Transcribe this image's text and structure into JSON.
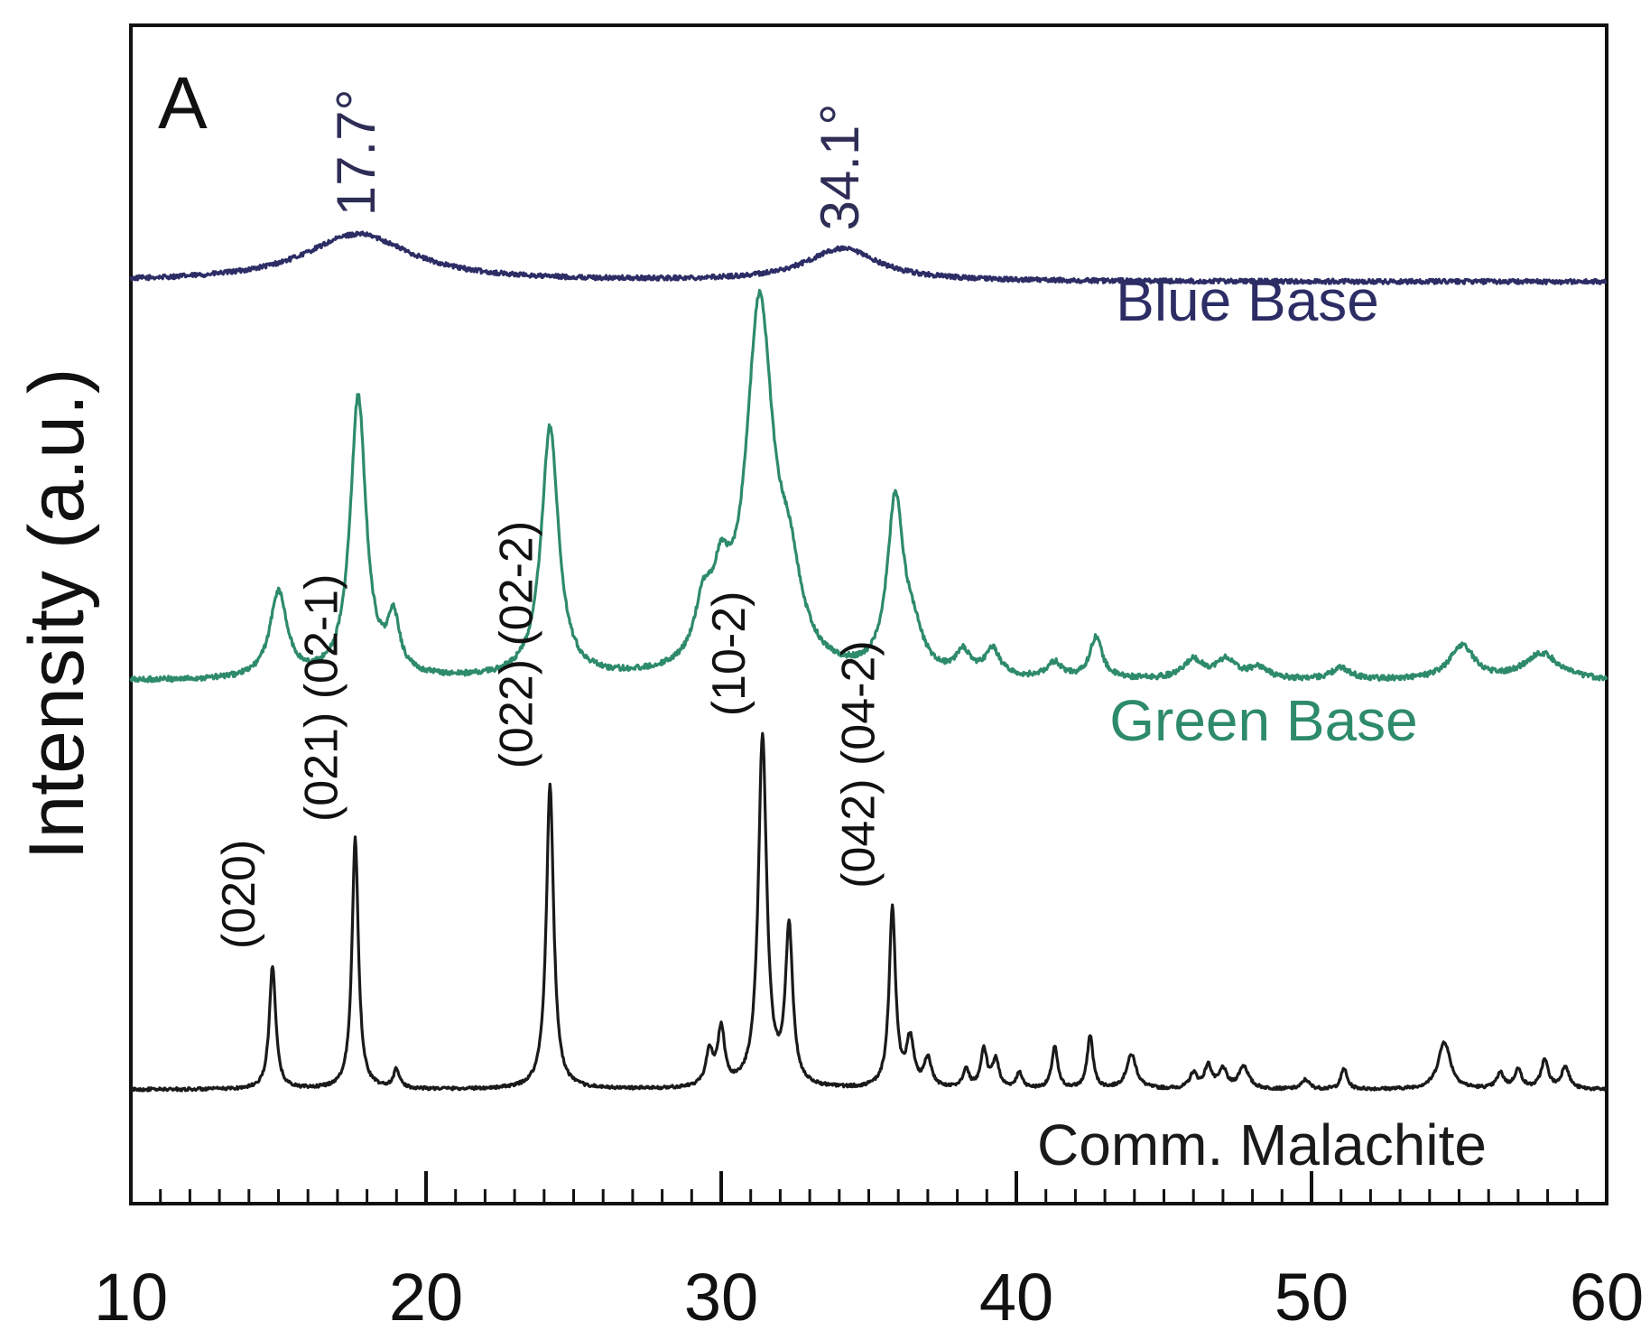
{
  "chart_data": {
    "type": "line",
    "panel_label": "A",
    "ylabel": "Intensity (a.u.)",
    "xlim": [
      10,
      60
    ],
    "x_ticks": [
      "10",
      "20",
      "30",
      "40",
      "50",
      "60"
    ],
    "grid": false,
    "series": [
      {
        "name": "Blue Base",
        "color": "#2d2d66",
        "baseline": 4.85,
        "peaks": [
          [
            17.7,
            0.25,
            2.2
          ],
          [
            34.1,
            0.17,
            1.5
          ]
        ],
        "noise": 0.012,
        "annotations": [
          {
            "x": 17.7,
            "label": "17.7°"
          },
          {
            "x": 34.1,
            "label": "34.1°"
          }
        ]
      },
      {
        "name": "Green Base",
        "color": "#2e8b6a",
        "baseline": 2.75,
        "peaks": [
          [
            15.0,
            0.45,
            0.35
          ],
          [
            17.7,
            1.48,
            0.32
          ],
          [
            18.9,
            0.28,
            0.25
          ],
          [
            24.2,
            1.32,
            0.35
          ],
          [
            29.4,
            0.28,
            0.35
          ],
          [
            30.0,
            0.35,
            0.35
          ],
          [
            31.3,
            1.92,
            0.55
          ],
          [
            32.3,
            0.4,
            0.5
          ],
          [
            35.9,
            0.9,
            0.33
          ],
          [
            36.5,
            0.18,
            0.4
          ],
          [
            38.2,
            0.12,
            0.3
          ],
          [
            39.2,
            0.14,
            0.3
          ],
          [
            41.3,
            0.08,
            0.3
          ],
          [
            42.7,
            0.22,
            0.25
          ],
          [
            46.0,
            0.1,
            0.4
          ],
          [
            47.1,
            0.1,
            0.4
          ],
          [
            48.2,
            0.06,
            0.4
          ],
          [
            51.0,
            0.06,
            0.4
          ],
          [
            55.1,
            0.18,
            0.5
          ],
          [
            57.8,
            0.14,
            0.7
          ]
        ],
        "noise": 0.014
      },
      {
        "name": "Comm. Malachite",
        "color": "#1a1a1a",
        "baseline": 0.6,
        "peaks": [
          [
            14.8,
            0.65,
            0.13
          ],
          [
            17.6,
            1.32,
            0.13
          ],
          [
            19.0,
            0.1,
            0.12
          ],
          [
            24.2,
            1.6,
            0.15
          ],
          [
            29.6,
            0.18,
            0.15
          ],
          [
            30.0,
            0.3,
            0.14
          ],
          [
            31.4,
            1.85,
            0.17
          ],
          [
            32.3,
            0.82,
            0.15
          ],
          [
            35.8,
            0.95,
            0.13
          ],
          [
            36.4,
            0.25,
            0.15
          ],
          [
            37.0,
            0.15,
            0.15
          ],
          [
            38.3,
            0.1,
            0.12
          ],
          [
            38.9,
            0.2,
            0.13
          ],
          [
            39.3,
            0.15,
            0.13
          ],
          [
            40.1,
            0.08,
            0.13
          ],
          [
            41.3,
            0.22,
            0.12
          ],
          [
            42.5,
            0.28,
            0.12
          ],
          [
            43.9,
            0.18,
            0.2
          ],
          [
            46.0,
            0.08,
            0.15
          ],
          [
            46.5,
            0.12,
            0.15
          ],
          [
            47.0,
            0.1,
            0.15
          ],
          [
            47.7,
            0.12,
            0.2
          ],
          [
            49.8,
            0.05,
            0.15
          ],
          [
            51.1,
            0.11,
            0.12
          ],
          [
            54.5,
            0.25,
            0.25
          ],
          [
            56.4,
            0.08,
            0.15
          ],
          [
            57.0,
            0.1,
            0.15
          ],
          [
            57.9,
            0.15,
            0.15
          ],
          [
            58.6,
            0.12,
            0.15
          ]
        ],
        "noise": 0.008,
        "annotations": [
          {
            "x": 14.8,
            "label": "(020)"
          },
          {
            "x": 17.6,
            "label": "(021) (02-1)"
          },
          {
            "x": 24.2,
            "label": "(022) (02-2)"
          },
          {
            "x": 31.4,
            "label": "(10-2)"
          },
          {
            "x": 35.8,
            "label": "(042) (04-2)"
          }
        ]
      }
    ]
  }
}
